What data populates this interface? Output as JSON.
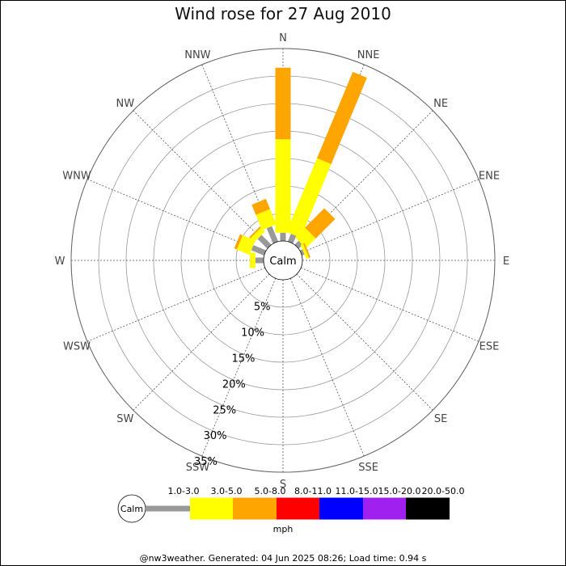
{
  "chart_data": {
    "type": "wind-rose",
    "title": "Wind rose for 27 Aug 2010",
    "directions": [
      "N",
      "NNE",
      "NE",
      "ENE",
      "E",
      "ESE",
      "SE",
      "SSE",
      "S",
      "SSW",
      "SW",
      "WSW",
      "W",
      "WNW",
      "NW",
      "NNW"
    ],
    "ring_labels": [
      "5%",
      "10%",
      "15%",
      "20%",
      "25%",
      "30%",
      "35%"
    ],
    "ring_values": [
      5,
      10,
      15,
      20,
      25,
      30,
      35
    ],
    "max_percent": 35,
    "calm_label": "Calm",
    "speed_unit": "mph",
    "speed_bins": [
      {
        "label": "1.0-3.0",
        "color": "#999999"
      },
      {
        "label": "3.0-5.0",
        "color": "#ffff00"
      },
      {
        "label": "5.0-8.0",
        "color": "#ffa500"
      },
      {
        "label": "8.0-11.0",
        "color": "#ff0000"
      },
      {
        "label": "11.0-15.0",
        "color": "#0000ff"
      },
      {
        "label": "15.0-20.0",
        "color": "#a020f0"
      },
      {
        "label": "20.0-50.0",
        "color": "#000000"
      }
    ],
    "series": [
      {
        "direction": "N",
        "values": [
          1.5,
          17.0,
          13.0,
          0,
          0,
          0,
          0
        ]
      },
      {
        "direction": "NNE",
        "values": [
          1.5,
          14.5,
          17.0,
          0,
          0,
          0,
          0
        ]
      },
      {
        "direction": "NE",
        "values": [
          1.0,
          2.5,
          5.0,
          0,
          0,
          0,
          0
        ]
      },
      {
        "direction": "ENE",
        "values": [
          0.5,
          0.5,
          0.3,
          0,
          0,
          0,
          0
        ]
      },
      {
        "direction": "E",
        "values": [
          0,
          0,
          0,
          0,
          0,
          0,
          0
        ]
      },
      {
        "direction": "ESE",
        "values": [
          0,
          0,
          0,
          0,
          0,
          0,
          0
        ]
      },
      {
        "direction": "SE",
        "values": [
          0,
          0,
          0,
          0,
          0,
          0,
          0
        ]
      },
      {
        "direction": "SSE",
        "values": [
          0,
          0,
          0,
          0,
          0,
          0,
          0
        ]
      },
      {
        "direction": "S",
        "values": [
          0,
          0,
          0,
          0,
          0,
          0,
          0
        ]
      },
      {
        "direction": "SSW",
        "values": [
          0,
          0,
          0,
          0,
          0,
          0,
          0
        ]
      },
      {
        "direction": "SW",
        "values": [
          0,
          0,
          0,
          0,
          0,
          0,
          0
        ]
      },
      {
        "direction": "WSW",
        "values": [
          0,
          0,
          0,
          0,
          0,
          0,
          0
        ]
      },
      {
        "direction": "W",
        "values": [
          1.5,
          1.0,
          0,
          0,
          0,
          0,
          0
        ]
      },
      {
        "direction": "WNW",
        "values": [
          2.5,
          2.5,
          0.5,
          0,
          0,
          0,
          0
        ]
      },
      {
        "direction": "NW",
        "values": [
          2.5,
          1.0,
          0.3,
          0,
          0,
          0,
          0
        ]
      },
      {
        "direction": "NNW",
        "values": [
          3.0,
          3.0,
          2.0,
          0,
          0,
          0,
          0
        ]
      }
    ]
  },
  "footer": "@nw3weather. Generated: 04 Jun 2025 08:26; Load time: 0.94 s"
}
